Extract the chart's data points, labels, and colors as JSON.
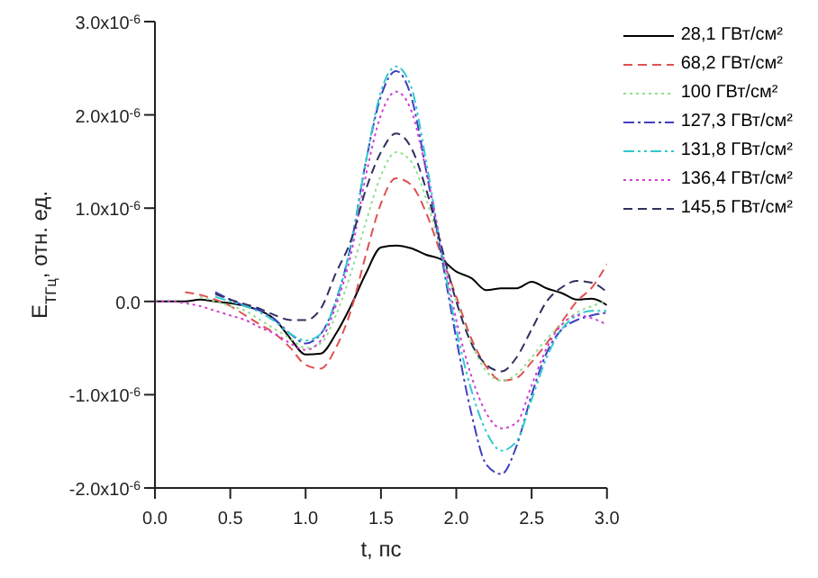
{
  "chart_data": {
    "type": "line",
    "xlabel": "t, пс",
    "ylabel": "E$_{ТГц}$, отн. ед.",
    "x": [
      0,
      0.1,
      0.2,
      0.3,
      0.4,
      0.5,
      0.6,
      0.7,
      0.8,
      0.9,
      1.0,
      1.1,
      1.2,
      1.3,
      1.4,
      1.5,
      1.6,
      1.7,
      1.8,
      1.9,
      2.0,
      2.1,
      2.2,
      2.3,
      2.4,
      2.5,
      2.6,
      2.7,
      2.8,
      2.9,
      3.0
    ],
    "xlim": [
      0,
      3
    ],
    "xticks": [
      {
        "value": 0,
        "label": "0.0"
      },
      0.5,
      {
        "value": 1,
        "label": "1.0"
      },
      1.5,
      {
        "value": 2,
        "label": "2.0"
      },
      2.5,
      {
        "value": 3,
        "label": "3.0"
      }
    ],
    "ylim": [
      -2e-06,
      3e-06
    ],
    "yticks": [
      {
        "value": -2e-06,
        "label": "-2.0x10$^{-6}$"
      },
      {
        "value": -1e-06,
        "label": "-1.0x10$^{-6}$"
      },
      {
        "value": 0,
        "label": "0.0"
      },
      {
        "value": 1e-06,
        "label": "1.0x10$^{-6}$"
      },
      {
        "value": 2e-06,
        "label": "2.0x10$^{-6}$"
      },
      {
        "value": 3e-06,
        "label": "3.0x10$^{-6}$"
      }
    ],
    "legend": "top right",
    "grid": false,
    "marker": "none",
    "series": [
      {
        "name": "28,1 ГВт/см²",
        "color": "#000000",
        "line_style": "solid",
        "values": [
          0,
          0,
          0,
          2e-08,
          0,
          -2e-08,
          -5e-08,
          -1e-07,
          -2e-07,
          -4e-07,
          -5.7e-07,
          -5.6e-07,
          -3.5e-07,
          -5e-08,
          3e-07,
          5.8e-07,
          6e-07,
          5.7e-07,
          5e-07,
          4.5e-07,
          3.2e-07,
          2.5e-07,
          1.2e-07,
          1.4e-07,
          1.4e-07,
          2.1e-07,
          1.4e-07,
          9e-08,
          2e-08,
          3e-08,
          -4e-08
        ]
      },
      {
        "name": "68,2 ГВт/см²",
        "color": "#e05050",
        "line_style": "dashed",
        "values": [
          null,
          null,
          1e-07,
          7e-08,
          2e-08,
          -5e-08,
          -1.5e-07,
          -2.5e-07,
          -3.5e-07,
          -5e-07,
          -6.8e-07,
          -7.2e-07,
          -5e-07,
          -1e-07,
          5e-07,
          1.05e-06,
          1.32e-06,
          1.25e-06,
          9.5e-07,
          5e-07,
          5e-08,
          -4e-07,
          -7e-07,
          -8.5e-07,
          -8.2e-07,
          -6.5e-07,
          -4.5e-07,
          -2.2e-07,
          0,
          1.5e-07,
          4e-07
        ]
      },
      {
        "name": "100 ГВт/см²",
        "color": "#90e090",
        "line_style": "dotted",
        "values": [
          null,
          null,
          null,
          5e-08,
          0,
          -5e-08,
          -1e-07,
          -2e-07,
          -3e-07,
          -4e-07,
          -5e-07,
          -4.5e-07,
          -1.5e-07,
          3e-07,
          8.5e-07,
          1.35e-06,
          1.6e-06,
          1.5e-06,
          1.1e-06,
          5.5e-07,
          0,
          -4.5e-07,
          -7.5e-07,
          -8.5e-07,
          -7.8e-07,
          -6e-07,
          -4e-07,
          -2.5e-07,
          -1.2e-07,
          -5e-08,
          0
        ]
      },
      {
        "name": "127,3 ГВт/см²",
        "color": "#4040c0",
        "line_style": "dashdot",
        "values": [
          null,
          null,
          null,
          null,
          1e-07,
          2e-08,
          -5e-08,
          -1e-07,
          -2e-07,
          -3.5e-07,
          -4.5e-07,
          -3.5e-07,
          0,
          6e-07,
          1.5e-06,
          2.2e-06,
          2.47e-06,
          2.2e-06,
          1.4e-06,
          5e-07,
          -4e-07,
          -1.2e-06,
          -1.75e-06,
          -1.85e-06,
          -1.55e-06,
          -1e-06,
          -5.5e-07,
          -3e-07,
          -2e-07,
          -1.5e-07,
          -1.2e-07
        ]
      },
      {
        "name": "131,8 ГВт/см²",
        "color": "#30c8d0",
        "line_style": "dashdotdot",
        "values": [
          null,
          null,
          null,
          null,
          5e-08,
          0,
          -5e-08,
          -1.2e-07,
          -2.2e-07,
          -3.5e-07,
          -4.2e-07,
          -3.5e-07,
          0,
          6e-07,
          1.5e-06,
          2.25e-06,
          2.52e-06,
          2.3e-06,
          1.5e-06,
          5.5e-07,
          -3e-07,
          -9.5e-07,
          -1.4e-06,
          -1.6e-06,
          -1.5e-06,
          -1.05e-06,
          -6e-07,
          -3e-07,
          -1.5e-07,
          -1e-07,
          -1e-07
        ]
      },
      {
        "name": "136,4 ГВт/см²",
        "color": "#d040d0",
        "line_style": "dotted",
        "values": [
          0,
          0,
          -2e-08,
          -5e-08,
          -1e-07,
          -1.5e-07,
          -2e-07,
          -2.8e-07,
          -3.5e-07,
          -4.5e-07,
          -5.2e-07,
          -4.2e-07,
          -5e-08,
          5e-07,
          1.35e-06,
          2e-06,
          2.25e-06,
          2.05e-06,
          1.4e-06,
          6e-07,
          -2e-07,
          -8e-07,
          -1.2e-06,
          -1.36e-06,
          -1.3e-06,
          -9e-07,
          -5e-07,
          -2.5e-07,
          -1.5e-07,
          -1.8e-07,
          -2.5e-07
        ]
      },
      {
        "name": "145,5 ГВт/см²",
        "color": "#303060",
        "line_style": "dashed",
        "values": [
          null,
          null,
          null,
          null,
          8e-08,
          2e-08,
          -3e-08,
          -8e-08,
          -1.5e-07,
          -2e-07,
          -2e-07,
          -8e-08,
          3e-07,
          6.5e-07,
          1.2e-06,
          1.6e-06,
          1.8e-06,
          1.65e-06,
          1.2e-06,
          6e-07,
          0,
          -4.5e-07,
          -6.8e-07,
          -7.5e-07,
          -6e-07,
          -3e-07,
          0,
          1.5e-07,
          2.2e-07,
          2e-07,
          1e-07
        ]
      }
    ]
  }
}
